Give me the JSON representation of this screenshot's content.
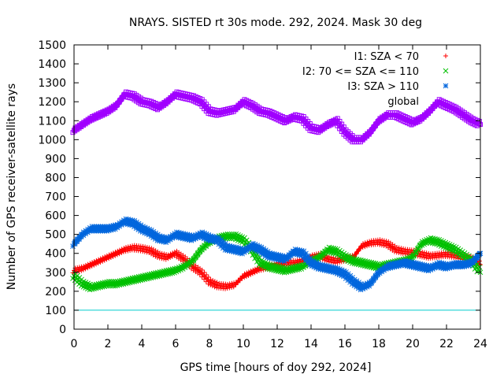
{
  "chart_data": {
    "type": "scatter",
    "title": "NRAYS. SISTED rt 30s mode. 292, 2024. Mask 30 deg",
    "xlabel": "GPS time [hours of doy 292, 2024]",
    "ylabel": "Number of GPS receiver-satellite rays",
    "xlim": [
      0,
      24
    ],
    "ylim": [
      0,
      1500
    ],
    "xticks": [
      0,
      2,
      4,
      6,
      8,
      10,
      12,
      14,
      16,
      18,
      20,
      22,
      24
    ],
    "yticks": [
      0,
      100,
      200,
      300,
      400,
      500,
      600,
      700,
      800,
      900,
      1000,
      1100,
      1200,
      1300,
      1400,
      1500
    ],
    "grid": false,
    "legend_position": "top-right",
    "threshold_line": {
      "y": 100,
      "color": "#00cccc"
    },
    "series": [
      {
        "name": "I1: SZA < 70",
        "marker": "+",
        "color": "#ff0000",
        "x": [
          0,
          0.5,
          1,
          1.5,
          2,
          2.5,
          3,
          3.5,
          4,
          4.5,
          5,
          5.5,
          6,
          6.5,
          7,
          7.5,
          8,
          8.5,
          9,
          9.5,
          10,
          10.5,
          11,
          11.5,
          12,
          12.5,
          13,
          13.5,
          14,
          14.5,
          15,
          15.5,
          16,
          16.5,
          17,
          17.5,
          18,
          18.5,
          19,
          19.5,
          20,
          20.5,
          21,
          21.5,
          22,
          22.5,
          23,
          23.5,
          24
        ],
        "y": [
          310,
          320,
          340,
          360,
          380,
          400,
          420,
          430,
          425,
          415,
          390,
          380,
          400,
          370,
          330,
          300,
          250,
          230,
          225,
          235,
          280,
          300,
          320,
          330,
          340,
          350,
          350,
          360,
          380,
          390,
          370,
          360,
          370,
          380,
          440,
          455,
          460,
          450,
          420,
          410,
          405,
          395,
          385,
          390,
          395,
          390,
          380,
          370,
          340
        ]
      },
      {
        "name": "I2: 70 <= SZA <= 110",
        "marker": "x",
        "color": "#00c000",
        "x": [
          0,
          0.5,
          1,
          1.5,
          2,
          2.5,
          3,
          3.5,
          4,
          4.5,
          5,
          5.5,
          6,
          6.5,
          7,
          7.5,
          8,
          8.5,
          9,
          9.5,
          10,
          10.5,
          11,
          11.5,
          12,
          12.5,
          13,
          13.5,
          14,
          14.5,
          15,
          15.5,
          16,
          16.5,
          17,
          17.5,
          18,
          18.5,
          19,
          19.5,
          20,
          20.5,
          21,
          21.5,
          22,
          22.5,
          23,
          23.5,
          24
        ],
        "y": [
          280,
          240,
          220,
          230,
          240,
          240,
          250,
          260,
          270,
          280,
          290,
          300,
          310,
          330,
          360,
          420,
          460,
          480,
          490,
          490,
          470,
          420,
          350,
          330,
          320,
          310,
          320,
          330,
          360,
          380,
          420,
          410,
          380,
          360,
          350,
          340,
          330,
          340,
          350,
          360,
          380,
          450,
          470,
          460,
          440,
          420,
          390,
          360,
          300
        ]
      },
      {
        "name": "I3: SZA > 110",
        "marker": "*",
        "color": "#0066dd",
        "x": [
          0,
          0.5,
          1,
          1.5,
          2,
          2.5,
          3,
          3.5,
          4,
          4.5,
          5,
          5.5,
          6,
          6.5,
          7,
          7.5,
          8,
          8.5,
          9,
          9.5,
          10,
          10.5,
          11,
          11.5,
          12,
          12.5,
          13,
          13.5,
          14,
          14.5,
          15,
          15.5,
          16,
          16.5,
          17,
          17.5,
          18,
          18.5,
          19,
          19.5,
          20,
          20.5,
          21,
          21.5,
          22,
          22.5,
          23,
          23.5,
          24
        ],
        "y": [
          450,
          500,
          530,
          530,
          530,
          540,
          570,
          560,
          530,
          510,
          480,
          470,
          500,
          490,
          480,
          500,
          480,
          470,
          430,
          420,
          410,
          440,
          420,
          390,
          380,
          370,
          410,
          400,
          350,
          330,
          320,
          310,
          290,
          250,
          220,
          240,
          300,
          330,
          340,
          350,
          340,
          330,
          320,
          340,
          330,
          340,
          340,
          350,
          400
        ]
      },
      {
        "name": "global",
        "marker": "square",
        "color": "#a000ff",
        "x": [
          0,
          0.5,
          1,
          1.5,
          2,
          2.5,
          3,
          3.5,
          4,
          4.5,
          5,
          5.5,
          6,
          6.5,
          7,
          7.5,
          8,
          8.5,
          9,
          9.5,
          10,
          10.5,
          11,
          11.5,
          12,
          12.5,
          13,
          13.5,
          14,
          14.5,
          15,
          15.5,
          16,
          16.5,
          17,
          17.5,
          18,
          18.5,
          19,
          19.5,
          20,
          20.5,
          21,
          21.5,
          22,
          22.5,
          23,
          23.5,
          24
        ],
        "y": [
          1050,
          1080,
          1110,
          1130,
          1150,
          1180,
          1240,
          1230,
          1200,
          1190,
          1170,
          1200,
          1240,
          1230,
          1220,
          1200,
          1150,
          1140,
          1150,
          1160,
          1200,
          1180,
          1150,
          1140,
          1120,
          1100,
          1120,
          1110,
          1060,
          1050,
          1080,
          1100,
          1040,
          1000,
          1000,
          1040,
          1100,
          1130,
          1130,
          1110,
          1090,
          1110,
          1150,
          1200,
          1180,
          1160,
          1130,
          1100,
          1080
        ]
      }
    ]
  }
}
